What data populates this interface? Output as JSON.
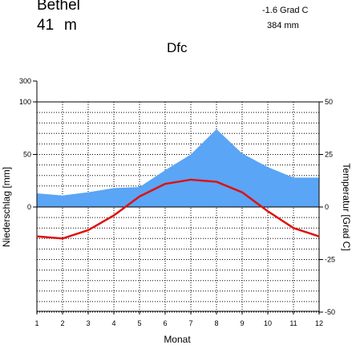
{
  "header": {
    "station": "Bethel",
    "elevation_value": "41",
    "elevation_unit": "m",
    "mean_temperature": "-1.6 Grad C",
    "annual_precipitation": "384 mm",
    "climate_class": "Dfc"
  },
  "colors": {
    "precipitation_fill": "#5aa5f5",
    "temperature_line": "#e01010"
  },
  "chart_data": {
    "type": "line",
    "x": [
      1,
      2,
      3,
      4,
      5,
      6,
      7,
      8,
      9,
      10,
      11,
      12
    ],
    "xlabel": "Monat",
    "ylabel": "Niederschlag [mm]",
    "y2label": "Temperatur [Grad C]",
    "x_ticks": [
      "1",
      "2",
      "3",
      "4",
      "5",
      "6",
      "7",
      "8",
      "9",
      "10",
      "11",
      "12"
    ],
    "y_ticks": [
      {
        "label": "300",
        "value": 300
      },
      {
        "label": "100",
        "value": 100
      },
      {
        "label": "50",
        "value": 50
      },
      {
        "label": "0",
        "value": 0
      }
    ],
    "y2_ticks": [
      {
        "label": "50",
        "value": 50
      },
      {
        "label": "25",
        "value": 25
      },
      {
        "label": "0",
        "value": 0
      },
      {
        "label": "-25",
        "value": -25
      },
      {
        "label": "-50",
        "value": -50
      }
    ],
    "xlim": [
      1,
      12
    ],
    "y2lim": [
      -50,
      50
    ],
    "grid": true,
    "series": [
      {
        "key": "precipitation",
        "axis": "left",
        "style": "area",
        "values": [
          13,
          11,
          14,
          18,
          19,
          35,
          50,
          74,
          51,
          38,
          28,
          28
        ]
      },
      {
        "key": "temperature",
        "axis": "right",
        "style": "line",
        "values": [
          -14,
          -15,
          -11,
          -4,
          5,
          11,
          13,
          12,
          7,
          -2,
          -10,
          -14
        ]
      }
    ]
  }
}
